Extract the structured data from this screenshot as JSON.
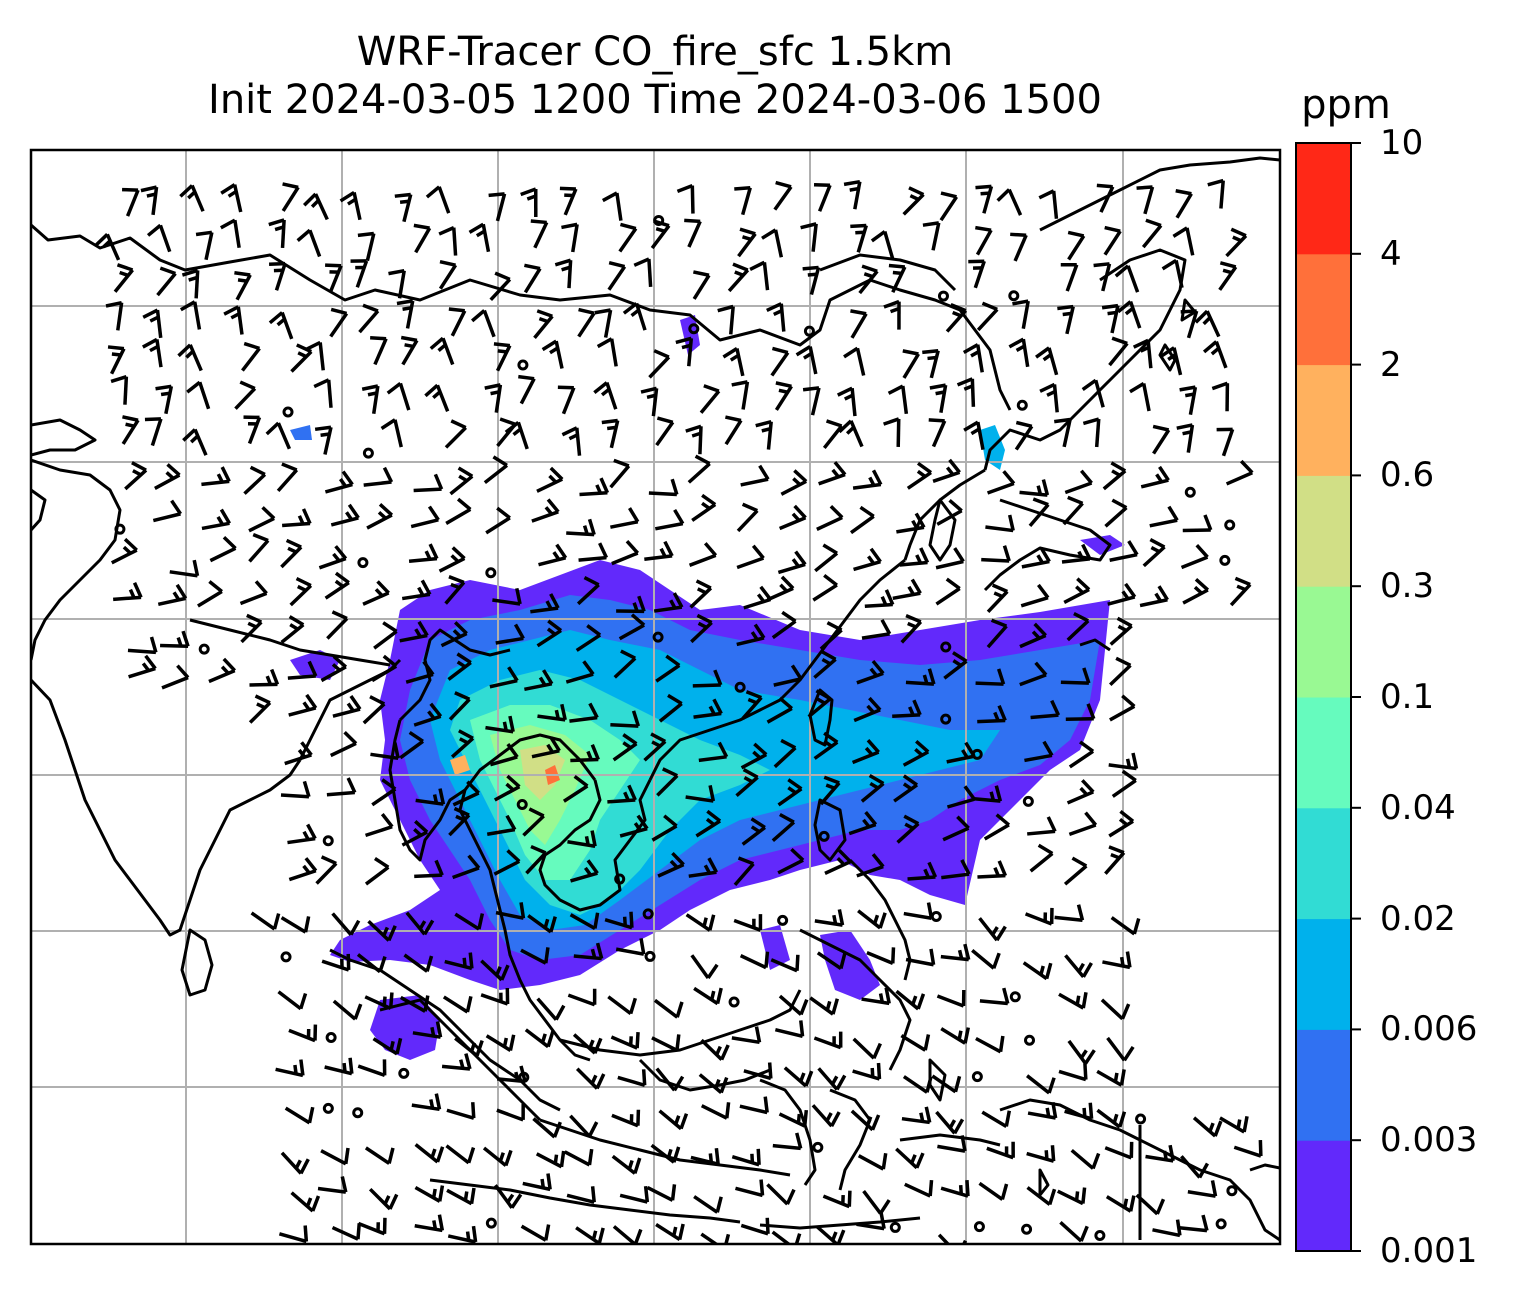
{
  "title_line1": "WRF-Tracer CO_fire_sfc 1.5km",
  "title_line2": "Init 2024-03-05 1200 Time 2024-03-06 1500",
  "colorbar": {
    "unit": "ppm",
    "levels": [
      "0.001",
      "0.003",
      "0.006",
      "0.02",
      "0.04",
      "0.1",
      "0.3",
      "0.6",
      "2",
      "4",
      "10"
    ],
    "colors": [
      "#6229fb",
      "#3071f2",
      "#00b1ec",
      "#31dcd4",
      "#66fbbe",
      "#99f993",
      "#d1df86",
      "#ffb15e",
      "#ff703a",
      "#ff2817"
    ]
  },
  "map": {
    "gridlines": true,
    "wind_barbs": true,
    "calm_markers": true,
    "coastlines": true
  }
}
